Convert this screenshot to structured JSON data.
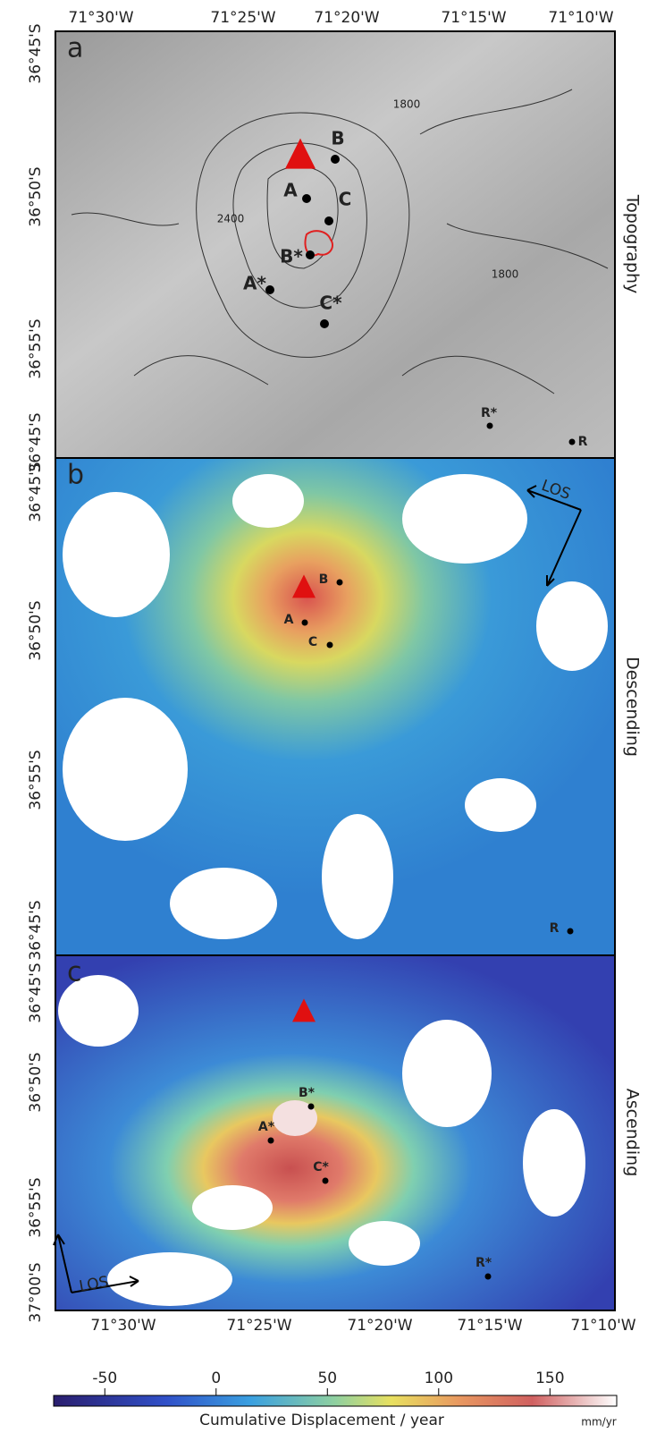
{
  "axes": {
    "top_lon": [
      "71°30'W",
      "71°25'W",
      "71°20'W",
      "71°15'W",
      "71°10'W"
    ],
    "bottom_lon": [
      "71°30'W",
      "71°25'W",
      "71°20'W",
      "71°15'W",
      "71°10'W"
    ]
  },
  "panels": [
    {
      "letter": "a",
      "name": "Topography",
      "lat_labels": [
        "36°45'S",
        "36°50'S",
        "36°55'S",
        "36°45'S"
      ],
      "points": [
        "A",
        "B",
        "C",
        "A*",
        "B*",
        "C*",
        "R*",
        "R"
      ],
      "contours": [
        "1800",
        "2400",
        "1800"
      ]
    },
    {
      "letter": "b",
      "name": "Descending",
      "lat_labels": [
        "36°45'S",
        "36°50'S",
        "36°55'S",
        "36°45'S"
      ],
      "points": [
        "A",
        "B",
        "C",
        "R"
      ],
      "arrow": "LOS"
    },
    {
      "letter": "c",
      "name": "Ascending",
      "lat_labels": [
        "36°45'S",
        "36°50'S",
        "36°55'S",
        "37°00'S"
      ],
      "points": [
        "A*",
        "B*",
        "C*",
        "R*"
      ],
      "arrow": "LOS"
    }
  ],
  "colorbar": {
    "label": "Cumulative Displacement / year",
    "unit": "mm/yr",
    "range": [
      -73,
      180
    ],
    "ticks": [
      -50,
      0,
      50,
      100,
      150
    ]
  }
}
